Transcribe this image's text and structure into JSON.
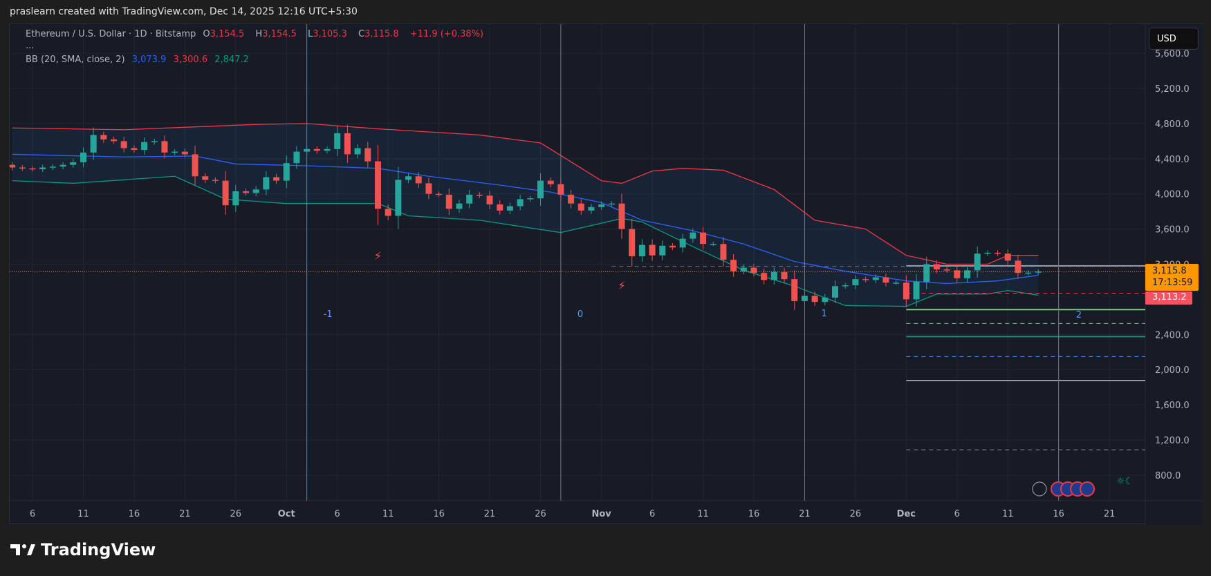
{
  "header": "praslearn created with TradingView.com, Dec 14, 2025 12:16 UTC+5:30",
  "legend": {
    "symbol": "Ethereum / U.S. Dollar · 1D · Bitstamp",
    "o_label": "O",
    "o": "3,154.5",
    "h_label": "H",
    "h": "3,154.5",
    "l_label": "L",
    "l": "3,105.3",
    "c_label": "C",
    "c": "3,115.8",
    "change": "+11.9 (+0.38%)",
    "more": "...",
    "bb_label": "BB (20, SMA, close, 2)",
    "bb_mid": "3,073.9",
    "bb_up": "3,300.6",
    "bb_low": "2,847.2"
  },
  "currency_button": "USD",
  "brand": "TradingView",
  "price_tag": {
    "price": "3,115.8",
    "countdown": "17:13:59",
    "color": "#ff9800"
  },
  "price_tag2": {
    "price": "3,113.2",
    "color": "#f7525f"
  },
  "chart_data": {
    "type": "candlestick",
    "ylim": [
      600,
      5750
    ],
    "y_ticks": [
      800,
      1200,
      1600,
      2000,
      2400,
      3200,
      3600,
      4000,
      4400,
      4800,
      5200,
      5600
    ],
    "y_tick_labels": [
      "800.0",
      "1,200.0",
      "1,600.0",
      "2,000.0",
      "2,400.0",
      "3,200.0",
      "3,600.0",
      "4,000.0",
      "4,400.0",
      "4,800.0",
      "5,200.0",
      "5,600.0"
    ],
    "x_ticks": [
      [
        "2025-09-06",
        "6"
      ],
      [
        "2025-09-11",
        "11"
      ],
      [
        "2025-09-16",
        "16"
      ],
      [
        "2025-09-21",
        "21"
      ],
      [
        "2025-09-26",
        "26"
      ],
      [
        "2025-10-01",
        "Oct"
      ],
      [
        "2025-10-06",
        "6"
      ],
      [
        "2025-10-11",
        "11"
      ],
      [
        "2025-10-16",
        "16"
      ],
      [
        "2025-10-21",
        "21"
      ],
      [
        "2025-10-26",
        "26"
      ],
      [
        "2025-11-01",
        "Nov"
      ],
      [
        "2025-11-06",
        "6"
      ],
      [
        "2025-11-11",
        "11"
      ],
      [
        "2025-11-16",
        "16"
      ],
      [
        "2025-11-21",
        "21"
      ],
      [
        "2025-11-26",
        "26"
      ],
      [
        "2025-12-01",
        "Dec"
      ],
      [
        "2025-12-06",
        "6"
      ],
      [
        "2025-12-11",
        "11"
      ],
      [
        "2025-12-16",
        "16"
      ],
      [
        "2025-12-21",
        "21"
      ]
    ],
    "first_open": 4330,
    "closes": [
      [
        "2025-09-04",
        4300
      ],
      [
        "2025-09-05",
        4290
      ],
      [
        "2025-09-06",
        4280
      ],
      [
        "2025-09-07",
        4300
      ],
      [
        "2025-09-08",
        4310
      ],
      [
        "2025-09-09",
        4330
      ],
      [
        "2025-09-10",
        4360
      ],
      [
        "2025-09-11",
        4470
      ],
      [
        "2025-09-12",
        4670
      ],
      [
        "2025-09-13",
        4620
      ],
      [
        "2025-09-14",
        4600
      ],
      [
        "2025-09-15",
        4520
      ],
      [
        "2025-09-16",
        4500
      ],
      [
        "2025-09-17",
        4590
      ],
      [
        "2025-09-18",
        4600
      ],
      [
        "2025-09-19",
        4470
      ],
      [
        "2025-09-20",
        4480
      ],
      [
        "2025-09-21",
        4450
      ],
      [
        "2025-09-22",
        4200
      ],
      [
        "2025-09-23",
        4160
      ],
      [
        "2025-09-24",
        4150
      ],
      [
        "2025-09-25",
        3870
      ],
      [
        "2025-09-26",
        4030
      ],
      [
        "2025-09-27",
        4010
      ],
      [
        "2025-09-28",
        4050
      ],
      [
        "2025-09-29",
        4190
      ],
      [
        "2025-09-30",
        4150
      ],
      [
        "2025-10-01",
        4350
      ],
      [
        "2025-10-02",
        4480
      ],
      [
        "2025-10-03",
        4510
      ],
      [
        "2025-10-04",
        4490
      ],
      [
        "2025-10-05",
        4510
      ],
      [
        "2025-10-06",
        4690
      ],
      [
        "2025-10-07",
        4450
      ],
      [
        "2025-10-08",
        4520
      ],
      [
        "2025-10-09",
        4370
      ],
      [
        "2025-10-10",
        3830
      ],
      [
        "2025-10-11",
        3750
      ],
      [
        "2025-10-12",
        4160
      ],
      [
        "2025-10-13",
        4200
      ],
      [
        "2025-10-14",
        4120
      ],
      [
        "2025-10-15",
        4000
      ],
      [
        "2025-10-16",
        3990
      ],
      [
        "2025-10-17",
        3830
      ],
      [
        "2025-10-18",
        3890
      ],
      [
        "2025-10-19",
        3990
      ],
      [
        "2025-10-20",
        3980
      ],
      [
        "2025-10-21",
        3880
      ],
      [
        "2025-10-22",
        3810
      ],
      [
        "2025-10-23",
        3860
      ],
      [
        "2025-10-24",
        3940
      ],
      [
        "2025-10-25",
        3950
      ],
      [
        "2025-10-26",
        4150
      ],
      [
        "2025-10-27",
        4110
      ],
      [
        "2025-10-28",
        3990
      ],
      [
        "2025-10-29",
        3890
      ],
      [
        "2025-10-30",
        3810
      ],
      [
        "2025-10-31",
        3850
      ],
      [
        "2025-11-01",
        3880
      ],
      [
        "2025-11-02",
        3890
      ],
      [
        "2025-11-03",
        3600
      ],
      [
        "2025-11-04",
        3290
      ],
      [
        "2025-11-05",
        3420
      ],
      [
        "2025-11-06",
        3300
      ],
      [
        "2025-11-07",
        3410
      ],
      [
        "2025-11-08",
        3390
      ],
      [
        "2025-11-09",
        3490
      ],
      [
        "2025-11-10",
        3560
      ],
      [
        "2025-11-11",
        3430
      ],
      [
        "2025-11-12",
        3430
      ],
      [
        "2025-11-13",
        3250
      ],
      [
        "2025-11-14",
        3120
      ],
      [
        "2025-11-15",
        3160
      ],
      [
        "2025-11-16",
        3100
      ],
      [
        "2025-11-17",
        3020
      ],
      [
        "2025-11-18",
        3110
      ],
      [
        "2025-11-19",
        3030
      ],
      [
        "2025-11-20",
        2780
      ],
      [
        "2025-11-21",
        2840
      ],
      [
        "2025-11-22",
        2770
      ],
      [
        "2025-11-23",
        2820
      ],
      [
        "2025-11-24",
        2950
      ],
      [
        "2025-11-25",
        2960
      ],
      [
        "2025-11-26",
        3030
      ],
      [
        "2025-11-27",
        3020
      ],
      [
        "2025-11-28",
        3050
      ],
      [
        "2025-11-29",
        2990
      ],
      [
        "2025-11-30",
        2990
      ],
      [
        "2025-12-01",
        2800
      ],
      [
        "2025-12-02",
        3000
      ],
      [
        "2025-12-03",
        3200
      ],
      [
        "2025-12-04",
        3140
      ],
      [
        "2025-12-05",
        3130
      ],
      [
        "2025-12-06",
        3040
      ],
      [
        "2025-12-07",
        3130
      ],
      [
        "2025-12-08",
        3320
      ],
      [
        "2025-12-09",
        3330
      ],
      [
        "2025-12-10",
        3320
      ],
      [
        "2025-12-11",
        3240
      ],
      [
        "2025-12-12",
        3100
      ],
      [
        "2025-12-13",
        3104
      ],
      [
        "2025-12-14",
        3115.8
      ]
    ],
    "bb_upper": [
      [
        "2025-09-04",
        4750
      ],
      [
        "2025-09-15",
        4730
      ],
      [
        "2025-09-28",
        4790
      ],
      [
        "2025-10-03",
        4800
      ],
      [
        "2025-10-10",
        4740
      ],
      [
        "2025-10-20",
        4670
      ],
      [
        "2025-10-26",
        4580
      ],
      [
        "2025-11-01",
        4150
      ],
      [
        "2025-11-03",
        4120
      ],
      [
        "2025-11-06",
        4260
      ],
      [
        "2025-11-09",
        4290
      ],
      [
        "2025-11-13",
        4270
      ],
      [
        "2025-11-18",
        4050
      ],
      [
        "2025-11-22",
        3700
      ],
      [
        "2025-11-27",
        3600
      ],
      [
        "2025-12-01",
        3300
      ],
      [
        "2025-12-05",
        3200
      ],
      [
        "2025-12-09",
        3200
      ],
      [
        "2025-12-11",
        3300
      ],
      [
        "2025-12-14",
        3300.6
      ]
    ],
    "bb_middle": [
      [
        "2025-09-04",
        4450
      ],
      [
        "2025-09-15",
        4420
      ],
      [
        "2025-09-22",
        4430
      ],
      [
        "2025-09-26",
        4340
      ],
      [
        "2025-10-03",
        4320
      ],
      [
        "2025-10-10",
        4290
      ],
      [
        "2025-10-15",
        4200
      ],
      [
        "2025-10-22",
        4100
      ],
      [
        "2025-10-27",
        4020
      ],
      [
        "2025-11-01",
        3900
      ],
      [
        "2025-11-05",
        3700
      ],
      [
        "2025-11-10",
        3580
      ],
      [
        "2025-11-15",
        3430
      ],
      [
        "2025-11-20",
        3230
      ],
      [
        "2025-11-25",
        3120
      ],
      [
        "2025-12-01",
        3010
      ],
      [
        "2025-12-05",
        2980
      ],
      [
        "2025-12-10",
        3010
      ],
      [
        "2025-12-14",
        3073.9
      ]
    ],
    "bb_lower": [
      [
        "2025-09-04",
        4150
      ],
      [
        "2025-09-10",
        4120
      ],
      [
        "2025-09-20",
        4200
      ],
      [
        "2025-09-25",
        3940
      ],
      [
        "2025-10-01",
        3890
      ],
      [
        "2025-10-10",
        3890
      ],
      [
        "2025-10-13",
        3750
      ],
      [
        "2025-10-20",
        3700
      ],
      [
        "2025-10-28",
        3560
      ],
      [
        "2025-11-03",
        3720
      ],
      [
        "2025-11-05",
        3680
      ],
      [
        "2025-11-10",
        3400
      ],
      [
        "2025-11-15",
        3130
      ],
      [
        "2025-11-20",
        2950
      ],
      [
        "2025-11-25",
        2730
      ],
      [
        "2025-12-01",
        2720
      ],
      [
        "2025-12-04",
        2860
      ],
      [
        "2025-12-09",
        2860
      ],
      [
        "2025-12-11",
        2900
      ],
      [
        "2025-12-14",
        2847.2
      ]
    ],
    "vertical_markers": [
      {
        "date": "2025-10-03",
        "label": "-1",
        "color": "#2196f3"
      },
      {
        "date": "2025-10-28",
        "label": "0",
        "color": "#787b86"
      },
      {
        "date": "2025-11-21",
        "label": "1",
        "color": "#787b86"
      },
      {
        "date": "2025-12-16",
        "label": "2",
        "color": "#787b86"
      }
    ],
    "horizontal_levels": [
      {
        "from": "2025-11-02",
        "price": 3174,
        "color": "#787b86",
        "dash": true
      },
      {
        "from": "2025-12-01",
        "price": 3180,
        "color": "#9598a1",
        "dash": false
      },
      {
        "from": "2025-12-01",
        "price": 2870,
        "color": "#f23645",
        "dash": true
      },
      {
        "from": "2025-12-01",
        "price": 2683,
        "color": "#81c784",
        "dash": false
      },
      {
        "from": "2025-12-01",
        "price": 2525,
        "color": "#81c784",
        "dash": true
      },
      {
        "from": "2025-12-01",
        "price": 2376,
        "color": "#089981",
        "dash": false
      },
      {
        "from": "2025-12-01",
        "price": 2148,
        "color": "#5b9cf6",
        "dash": true
      },
      {
        "from": "2025-12-01",
        "price": 1876,
        "color": "#9598a1",
        "dash": false
      },
      {
        "from": "2025-12-01",
        "price": 1087,
        "color": "#9598a1",
        "dash": true
      }
    ],
    "events": [
      {
        "date": "2025-10-10",
        "type": "lightning-icon"
      },
      {
        "date": "2025-11-03",
        "type": "lightning-icon"
      }
    ],
    "colors": {
      "up": "#26a69a",
      "down": "#ef5350",
      "bb_upper": "#f23645",
      "bb_middle": "#2962ff",
      "bb_lower": "#089981",
      "last_price": "#ff9800"
    }
  }
}
